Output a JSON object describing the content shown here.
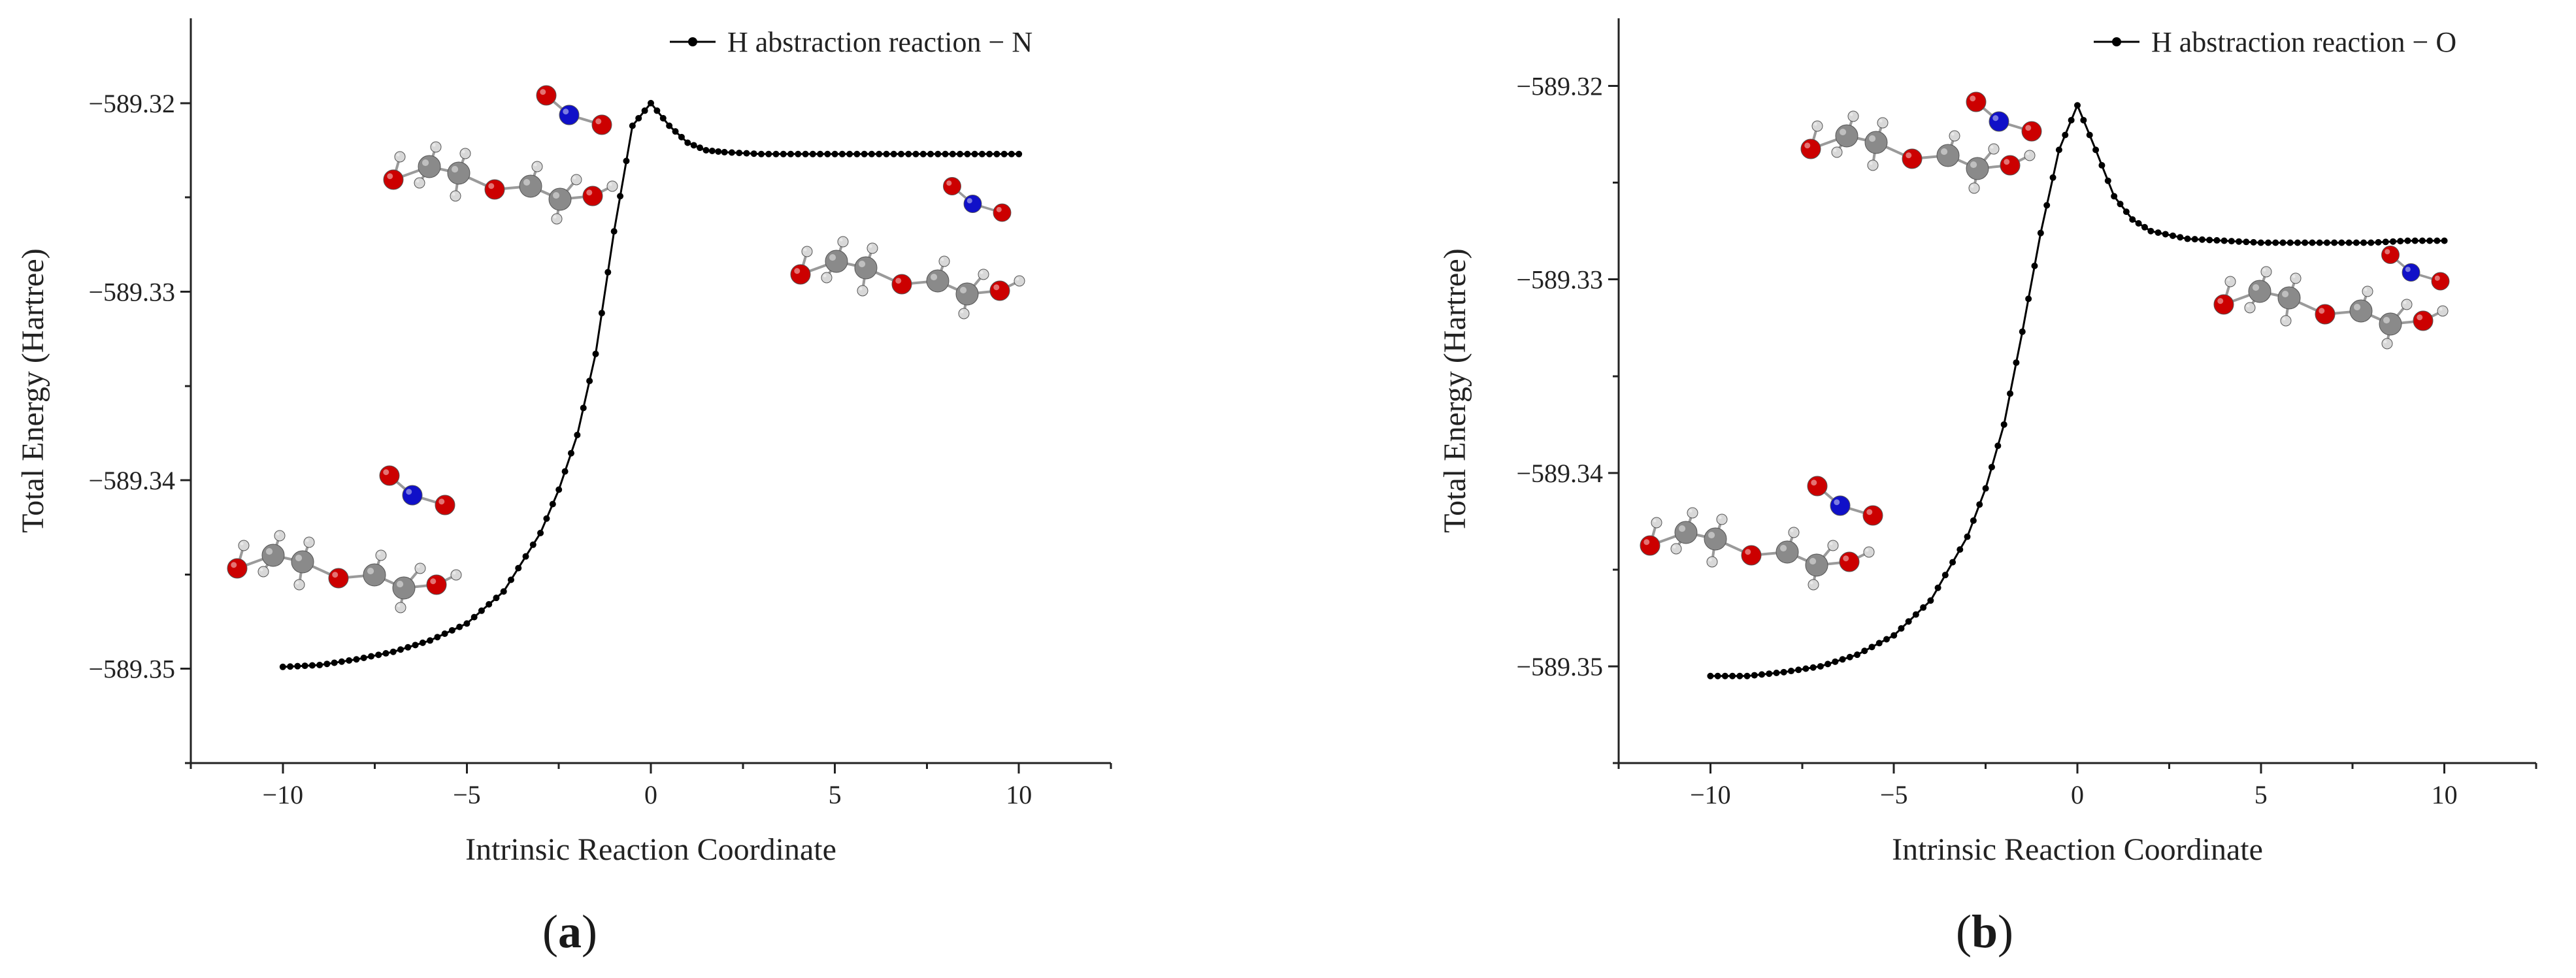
{
  "panels": [
    {
      "id": "a",
      "label": "a",
      "chart_data": {
        "type": "line",
        "title": "",
        "xlabel": "Intrinsic Reaction Coordinate",
        "ylabel": "Total Energy (Hartree)",
        "xlim": [
          -12.5,
          12.5
        ],
        "ylim": [
          -589.355,
          -589.3155
        ],
        "xticks": [
          -10,
          -5,
          0,
          5,
          10
        ],
        "xticklabels": [
          "−10",
          "−5",
          "0",
          "5",
          "10"
        ],
        "yticks": [
          -589.35,
          -589.34,
          -589.33,
          -589.32
        ],
        "yticklabels": [
          "−589.35",
          "−589.34",
          "−589.33",
          "−589.32"
        ],
        "legend": "top-right",
        "series": [
          {
            "name": "H abstraction reaction − N",
            "x": [
              -10,
              -9,
              -8,
              -7,
              -6,
              -5,
              -4,
              -3,
              -2.5,
              -2,
              -1.5,
              -1,
              -0.5,
              0,
              0.5,
              1,
              1.5,
              2,
              3,
              4,
              5,
              6,
              7,
              8,
              9,
              10
            ],
            "y": [
              -589.3499,
              -589.3498,
              -589.3495,
              -589.3491,
              -589.3485,
              -589.3476,
              -589.3459,
              -589.3428,
              -589.3405,
              -589.3376,
              -589.3333,
              -589.3268,
              -589.3212,
              -589.32,
              -589.3212,
              -589.3221,
              -589.3225,
              -589.3226,
              -589.3227,
              -589.3227,
              -589.3227,
              -589.3227,
              -589.3227,
              -589.3227,
              -589.3227,
              -589.3227
            ]
          }
        ]
      }
    },
    {
      "id": "b",
      "label": "b",
      "chart_data": {
        "type": "line",
        "title": "",
        "xlabel": "Intrinsic Reaction Coordinate",
        "ylabel": "Total Energy (Hartree)",
        "xlim": [
          -12.5,
          12.5
        ],
        "ylim": [
          -589.355,
          -589.3165
        ],
        "xticks": [
          -10,
          -5,
          0,
          5,
          10
        ],
        "xticklabels": [
          "−10",
          "−5",
          "0",
          "5",
          "10"
        ],
        "yticks": [
          -589.35,
          -589.34,
          -589.33,
          -589.32
        ],
        "yticklabels": [
          "−589.35",
          "−589.34",
          "−589.33",
          "−589.32"
        ],
        "legend": "top-right",
        "series": [
          {
            "name": "H abstraction reaction − O",
            "x": [
              -10,
              -9,
              -8,
              -7,
              -6,
              -5,
              -4,
              -3,
              -2.5,
              -2,
              -1.5,
              -1,
              -0.5,
              0,
              0.5,
              1,
              1.5,
              2,
              3,
              4,
              5,
              6,
              7,
              8,
              9,
              10
            ],
            "y": [
              -589.3505,
              -589.3505,
              -589.3503,
              -589.35,
              -589.3494,
              -589.3484,
              -589.3466,
              -589.3433,
              -589.3408,
              -589.3375,
              -589.3327,
              -589.3276,
              -589.3233,
              -589.321,
              -589.3233,
              -589.3257,
              -589.3269,
              -589.3275,
              -589.3279,
              -589.328,
              -589.3281,
              -589.3281,
              -589.3281,
              -589.3281,
              -589.328,
              -589.328
            ]
          }
        ]
      }
    }
  ],
  "colors": {
    "curve": "#000000",
    "oxygen": "#cc0000",
    "nitrogen": "#1010c8",
    "carbon": "#8a8a8a",
    "hydrogen": "#d8d8d8",
    "bond": "#9a9a9a"
  }
}
